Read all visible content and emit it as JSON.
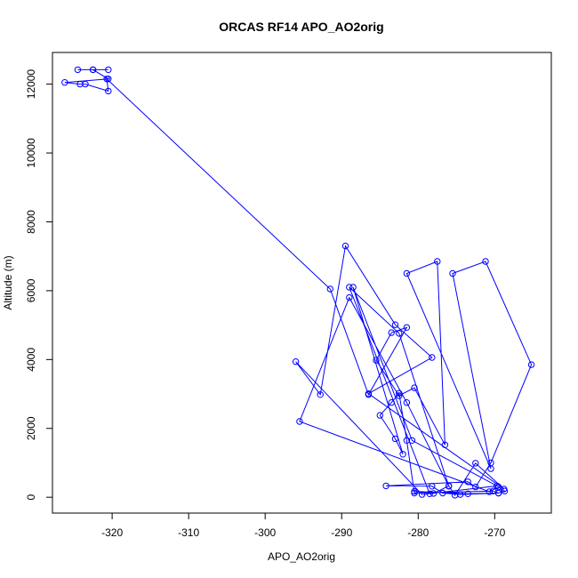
{
  "chart_data": {
    "type": "line",
    "title": "ORCAS RF14 APO_AO2orig",
    "xlabel": "APO_AO2orig",
    "ylabel": "Altitude (m)",
    "xlim": [
      -327.8,
      -262.6
    ],
    "ylim": [
      -460,
      12920
    ],
    "xticks": [
      -320,
      -310,
      -300,
      -290,
      -280,
      -270
    ],
    "yticks": [
      0,
      2000,
      4000,
      6000,
      8000,
      10000,
      12000
    ],
    "grid": false,
    "legend": "none",
    "color": "#0000ff",
    "markers": "open-circle",
    "series": [
      {
        "x": [
          -322.5,
          -320.5,
          -324.5,
          -322.5,
          -320.5,
          -326.2,
          -324.2,
          -323.5,
          -320.5,
          -320.7,
          -291.5,
          -286.5,
          -281.5,
          -283.5,
          -285.5,
          -282.5,
          -280.5,
          -276.5,
          -277.5,
          -281.5,
          -270.5,
          -275.5,
          -271.2,
          -265.2,
          -270.5,
          -272.5,
          -273.5,
          -284.2,
          -278.2,
          -276.8,
          -274.5,
          -269.5,
          -270.2,
          -280.5,
          -281.5,
          -282.5,
          -283.5,
          -285.0,
          -283.0,
          -282.0,
          -288.5,
          -280.8,
          -269.7,
          -279.5,
          -296.0,
          -292.8,
          -289.5,
          -283.0,
          -278.2,
          -286.5,
          -268.8,
          -272.5,
          -275.2,
          -276.0,
          -278.0,
          -280.5,
          -273.5,
          -269.5,
          -268.7,
          -269.5,
          -270.7,
          -295.5,
          -289.0,
          -281.5,
          -276.0,
          -282.5,
          -289.0,
          -278.5
        ],
        "y": [
          12420,
          12420,
          12420,
          12420,
          12150,
          12050,
          12000,
          12000,
          11800,
          12150,
          6050,
          2980,
          4930,
          4780,
          3980,
          2950,
          3180,
          1520,
          6850,
          6500,
          830,
          6500,
          6850,
          3850,
          1000,
          300,
          450,
          330,
          320,
          120,
          80,
          120,
          180,
          120,
          1650,
          3020,
          2750,
          2380,
          1700,
          1250,
          6100,
          1650,
          330,
          80,
          3940,
          2980,
          7300,
          5010,
          4060,
          3010,
          240,
          990,
          60,
          330,
          110,
          170,
          100,
          120,
          180,
          300,
          160,
          2200,
          5800,
          2750,
          320,
          4760,
          6100,
          100
        ]
      }
    ]
  }
}
